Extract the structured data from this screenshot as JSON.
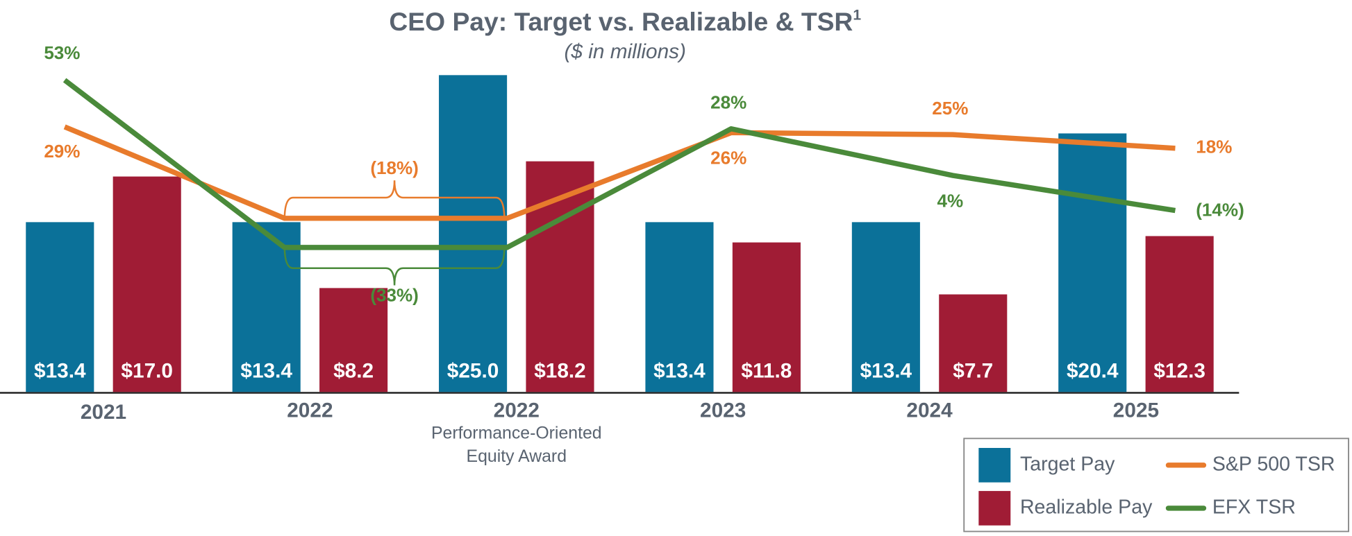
{
  "chart_data": {
    "type": "bar",
    "title": "CEO Pay: Target vs. Realizable & TSR",
    "title_footnote": "1",
    "subtitle": "($ in millions)",
    "categories": [
      "2021",
      "2022",
      "2022",
      "2023",
      "2024",
      "2025"
    ],
    "category_note": {
      "index": 2,
      "lines": [
        "Performance-Oriented",
        "Equity Award"
      ]
    },
    "series": [
      {
        "name": "Target Pay",
        "color": "#0b7199",
        "values": [
          13.4,
          13.4,
          25.0,
          13.4,
          13.4,
          20.4
        ],
        "value_labels": [
          "$13.4",
          "$13.4",
          "$25.0",
          "$13.4",
          "$13.4",
          "$20.4"
        ]
      },
      {
        "name": "Realizable Pay",
        "color": "#a01c35",
        "values": [
          17.0,
          8.2,
          18.2,
          11.8,
          7.7,
          12.3
        ],
        "value_labels": [
          "$17.0",
          "$8.2",
          "$18.2",
          "$11.8",
          "$7.7",
          "$12.3"
        ]
      }
    ],
    "line_series": [
      {
        "name": "S&P 500 TSR",
        "color": "#e87b2c",
        "axis": "y2",
        "values": [
          29,
          -18,
          -18,
          26,
          25,
          18
        ],
        "value_labels": [
          "29%",
          "(18%)",
          null,
          "26%",
          "25%",
          "18%"
        ]
      },
      {
        "name": "EFX TSR",
        "color": "#4a8a3a",
        "axis": "y2",
        "values": [
          53,
          -33,
          -33,
          28,
          4,
          -14
        ],
        "value_labels": [
          "53%",
          "(33%)",
          null,
          "28%",
          "4%",
          "(14%)"
        ]
      }
    ],
    "ylim": [
      0,
      25
    ],
    "y2lim": [
      -40,
      60
    ],
    "legend": "lower right"
  }
}
